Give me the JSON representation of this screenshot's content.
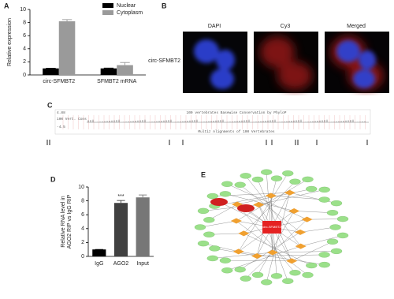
{
  "panel_labels": [
    "A",
    "B",
    "C",
    "D",
    "E"
  ],
  "chart_data": [
    {
      "type": "bar",
      "ylabel": [
        "Relative expression"
      ],
      "categories": [
        "circ-SFMBT2",
        "SFMBT2 mRNA"
      ],
      "series": [
        {
          "name": "Nuclear",
          "color": "#000000",
          "values": [
            1,
            1
          ],
          "errors": [
            0.03,
            0.05
          ]
        },
        {
          "name": "Cytoplasm",
          "color": "#9a9a9a",
          "values": [
            8.2,
            1.5
          ],
          "errors": [
            0.25,
            0.4
          ]
        }
      ],
      "ylim": [
        0,
        10
      ],
      "yticks": [
        0,
        2,
        4,
        6,
        8,
        10
      ],
      "legend": "upper right"
    },
    {
      "type": "bar",
      "ylabel": [
        "Relative RNA level in",
        "AGO2 RIP vs IgG RIP"
      ],
      "categories": [
        "IgG",
        "AGO2",
        "Input"
      ],
      "series": [
        {
          "colors": [
            "#000000",
            "#404040",
            "#777777"
          ],
          "values": [
            1,
            7.7,
            8.5
          ],
          "errors": [
            0,
            0.35,
            0.35
          ]
        }
      ],
      "ylim": [
        0,
        10
      ],
      "yticks": [
        0,
        2,
        4,
        6,
        8,
        10
      ],
      "annotations": [
        {
          "text": "***",
          "category": "AGO2"
        }
      ]
    }
  ],
  "panel_b": {
    "columns": [
      "DAPI",
      "Cy3",
      "Merged"
    ],
    "row": "circ-SFMBT2"
  },
  "panel_c": {
    "title": "100 vertebrates Basewise Conservation by PhyloP",
    "subtitle": "Multiz Alignments of 100 Vertebrates",
    "max_label": "4.88",
    "track_label": "100 Vert. Cons",
    "min_label": "-4.5"
  },
  "panel_e": {
    "center": "circ-SFMBT2"
  }
}
